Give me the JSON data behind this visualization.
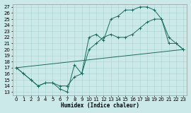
{
  "xlabel": "Humidex (Indice chaleur)",
  "xlim": [
    -0.5,
    23.5
  ],
  "ylim": [
    12.5,
    27.5
  ],
  "yticks": [
    13,
    14,
    15,
    16,
    17,
    18,
    19,
    20,
    21,
    22,
    23,
    24,
    25,
    26,
    27
  ],
  "xticks": [
    0,
    1,
    2,
    3,
    4,
    5,
    6,
    7,
    8,
    9,
    10,
    11,
    12,
    13,
    14,
    15,
    16,
    17,
    18,
    19,
    20,
    21,
    22,
    23
  ],
  "bg_color": "#cce9e9",
  "line_color": "#1a6b5e",
  "grid_color": "#aad4d4",
  "line1_x": [
    0,
    1,
    2,
    3,
    4,
    5,
    6,
    7,
    8,
    9,
    10,
    11,
    12,
    13,
    14,
    15,
    16,
    17,
    18,
    19,
    20,
    21,
    22,
    23
  ],
  "line1_y": [
    17.0,
    16.0,
    15.0,
    14.0,
    14.5,
    14.5,
    13.5,
    13.0,
    17.5,
    16.0,
    22.0,
    22.5,
    21.5,
    25.0,
    25.5,
    26.5,
    26.5,
    27.0,
    27.0,
    26.5,
    25.0,
    21.0,
    21.0,
    20.0
  ],
  "line2_x": [
    0,
    1,
    2,
    3,
    4,
    5,
    6,
    7,
    8,
    9,
    10,
    11,
    12,
    13,
    14,
    15,
    16,
    17,
    18,
    19,
    20,
    21,
    22,
    23
  ],
  "line2_y": [
    17.0,
    16.0,
    15.0,
    14.0,
    14.5,
    14.5,
    14.0,
    14.0,
    15.5,
    16.0,
    20.0,
    21.0,
    22.0,
    22.5,
    22.0,
    22.0,
    22.5,
    23.5,
    24.5,
    25.0,
    25.0,
    22.0,
    21.0,
    20.0
  ],
  "line3_x": [
    0,
    23
  ],
  "line3_y": [
    17.0,
    20.0
  ]
}
